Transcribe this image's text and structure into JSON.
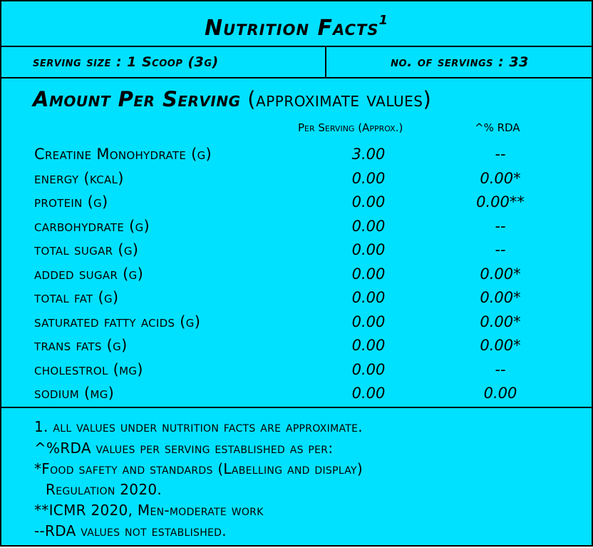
{
  "title": "Nutrition Facts",
  "title_sup": "1",
  "serving_size": "serving size : 1 Scoop (3g)",
  "servings": "no. of servings : 33",
  "aps_bold": "Amount Per Serving",
  "aps_rest": "(approximate values)",
  "col_per": "Per Serving (Approx.)",
  "col_rda": "^% RDA",
  "rows": [
    {
      "name": "Creatine Monohydrate (g)",
      "per": "3.00",
      "rda": "--"
    },
    {
      "name": "energy (kcal)",
      "per": "0.00",
      "rda": "0.00*"
    },
    {
      "name": "protein (g)",
      "per": "0.00",
      "rda": "0.00**"
    },
    {
      "name": "carbohydrate (g)",
      "per": "0.00",
      "rda": "--"
    },
    {
      "name": "total sugar (g)",
      "per": "0.00",
      "rda": "--"
    },
    {
      "name": "added sugar (g)",
      "per": "0.00",
      "rda": "0.00*"
    },
    {
      "name": "total fat (g)",
      "per": "0.00",
      "rda": "0.00*"
    },
    {
      "name": "saturated fatty acids (g)",
      "per": "0.00",
      "rda": "0.00*"
    },
    {
      "name": "trans fats (g)",
      "per": "0.00",
      "rda": "0.00*"
    },
    {
      "name": "cholestrol (mg)",
      "per": "0.00",
      "rda": "--"
    },
    {
      "name": "sodium (mg)",
      "per": "0.00",
      "rda": "0.00"
    }
  ],
  "footnotes": [
    "1. all values under nutrition facts are approximate.",
    "^%RDA values per serving established as per:",
    "*Food safety and standards (Labelling and display)",
    "  Regulation 2020.",
    "**ICMR 2020, Men-moderate work",
    "--RDA values not established."
  ],
  "colors": {
    "background": "#00e1ff",
    "border": "#000000"
  }
}
